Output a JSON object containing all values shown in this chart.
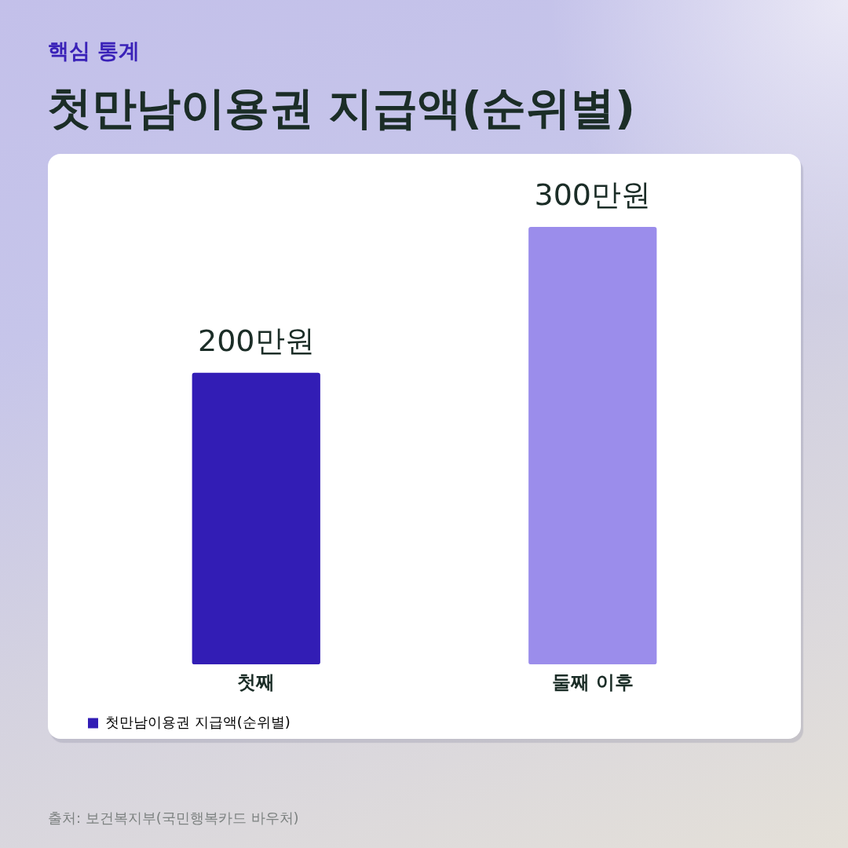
{
  "chart_data": {
    "type": "bar",
    "title": "첫만남이용권 지급액(순위별)",
    "subtitle": "핵심 통계",
    "categories": [
      "첫째",
      "둘째 이후"
    ],
    "series": [
      {
        "name": "첫만남이용권 지급액(순위별)",
        "colors": [
          "#321db5",
          "#9b8deb"
        ],
        "values": [
          200,
          300
        ],
        "value_labels": [
          "200만원",
          "300만원"
        ]
      }
    ],
    "legend": "bottom left",
    "tick_labels": "x",
    "annotations": [
      "출처: 보건복지부(국민행복카드 바우처)"
    ]
  }
}
